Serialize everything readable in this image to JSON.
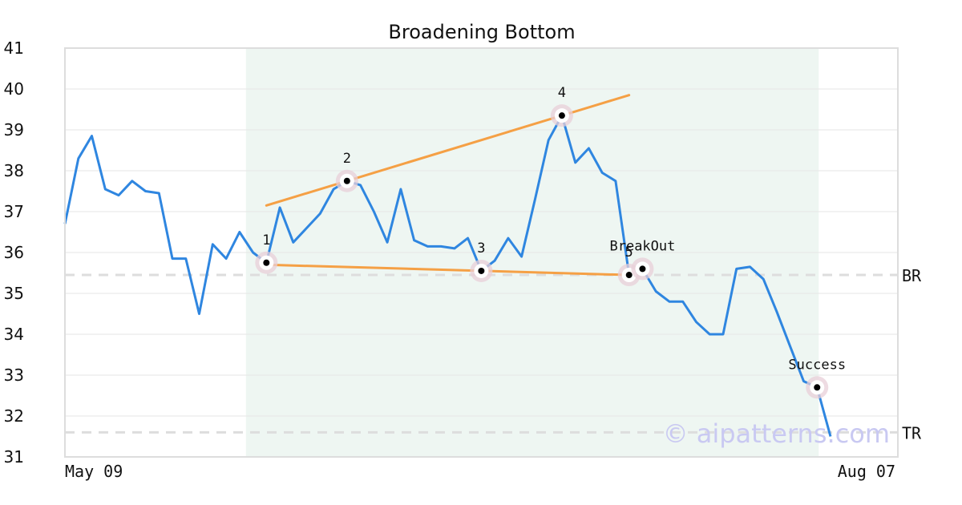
{
  "chart_data": {
    "type": "line",
    "title": "Broadening Bottom",
    "xlabel": "",
    "ylabel": "",
    "ylim": [
      31,
      41
    ],
    "yticks": [
      31,
      32,
      33,
      34,
      35,
      36,
      37,
      38,
      39,
      40,
      41
    ],
    "x_tick_labels": [
      "May 09",
      "Aug 07"
    ],
    "grid": "horizontal",
    "legend": "none",
    "series": [
      {
        "color": "#2f86e0",
        "values": [
          36.7,
          38.3,
          38.85,
          37.55,
          37.4,
          37.75,
          37.5,
          37.45,
          35.85,
          35.85,
          34.5,
          36.2,
          35.85,
          36.5,
          36.0,
          35.75,
          37.1,
          36.25,
          36.6,
          36.95,
          37.55,
          37.75,
          37.65,
          37.0,
          36.25,
          37.55,
          36.3,
          36.15,
          36.15,
          36.1,
          36.35,
          35.55,
          35.8,
          36.35,
          35.9,
          37.3,
          38.75,
          39.35,
          38.2,
          38.55,
          37.95,
          37.75,
          35.45,
          35.6,
          35.05,
          34.8,
          34.8,
          34.3,
          34.0,
          34.0,
          35.6,
          35.65,
          35.35,
          34.55,
          33.7,
          32.85,
          32.7,
          31.5
        ]
      }
    ],
    "pattern_region": {
      "start_index": 13,
      "end_index": 56,
      "color": "#eef6f2"
    },
    "trend_lines": [
      {
        "color": "#f5a045",
        "start": [
          15,
          37.15
        ],
        "end": [
          42,
          39.85
        ]
      },
      {
        "color": "#f5a045",
        "start": [
          15,
          35.7
        ],
        "end": [
          42,
          35.45
        ]
      }
    ],
    "levels": [
      {
        "label": "BR",
        "value": 35.45
      },
      {
        "label": "TR",
        "value": 31.6
      }
    ],
    "markers": [
      {
        "label": "1",
        "index": 15,
        "value": 35.75
      },
      {
        "label": "2",
        "index": 21,
        "value": 37.75
      },
      {
        "label": "3",
        "index": 31,
        "value": 35.55
      },
      {
        "label": "4",
        "index": 37,
        "value": 39.35
      },
      {
        "label": "5",
        "index": 42,
        "value": 35.45
      },
      {
        "label": "BreakOut",
        "index": 43,
        "value": 35.6
      },
      {
        "label": "Success",
        "index": 56,
        "value": 32.7
      }
    ],
    "watermark": "© aipatterns.com"
  },
  "colors": {
    "line": "#2f86e0",
    "trend": "#f5a045",
    "region": "#eef6f2",
    "marker_halo": "#e8cfd8",
    "levels": "#dddddd",
    "grid": "#e6e6e6",
    "frame": "#dddddd"
  }
}
